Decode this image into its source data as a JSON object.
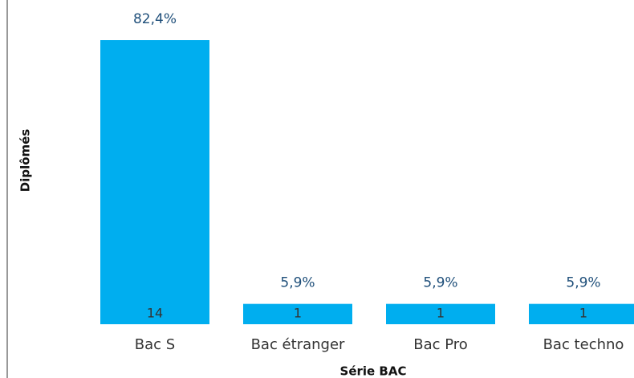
{
  "chart_data": {
    "type": "bar",
    "x_label": "Série BAC",
    "y_label": "Diplômés",
    "categories": [
      "Bac S",
      "Bac étranger",
      "Bac Pro",
      "Bac techno"
    ],
    "values": [
      82.4,
      5.9,
      5.9,
      5.9
    ],
    "value_labels": [
      "82,4%",
      "5,9%",
      "5,9%",
      "5,9%"
    ],
    "counts": [
      14,
      1,
      1,
      1
    ],
    "color": "#00aeef"
  }
}
